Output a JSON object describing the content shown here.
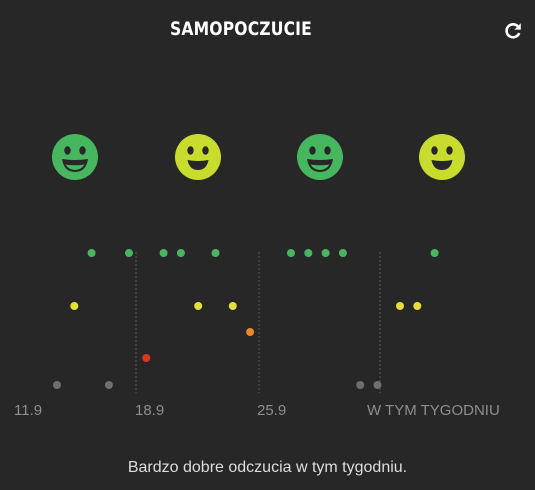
{
  "header": {
    "title": "SAMOPOCZUCIE",
    "refresh_icon": "refresh-icon"
  },
  "colors": {
    "background": "#272727",
    "very_good": "#47b75f",
    "good": "#c8dc2d",
    "ok": "#e8de3a",
    "medium": "#e8892b",
    "bad": "#d8381e",
    "none": "#6f6f6f"
  },
  "weeks": [
    {
      "label": "11.9",
      "mood": "very_good",
      "mood_icon": "very-happy-face-icon"
    },
    {
      "label": "18.9",
      "mood": "good",
      "mood_icon": "happy-face-icon"
    },
    {
      "label": "25.9",
      "mood": "very_good",
      "mood_icon": "very-happy-face-icon"
    },
    {
      "label": "W TYM TYGODNIU",
      "mood": "good",
      "mood_icon": "happy-face-icon"
    }
  ],
  "chart_data": {
    "type": "scatter",
    "levels": [
      "none",
      "bad",
      "medium",
      "ok",
      "good",
      "very_good"
    ],
    "days": [
      {
        "week": 0,
        "day": 0,
        "level": "none"
      },
      {
        "week": 0,
        "day": 1,
        "level": "ok"
      },
      {
        "week": 0,
        "day": 2,
        "level": "very_good"
      },
      {
        "week": 0,
        "day": 3,
        "level": "none"
      },
      {
        "week": 1,
        "day": 0,
        "level": "very_good"
      },
      {
        "week": 1,
        "day": 1,
        "level": "bad"
      },
      {
        "week": 1,
        "day": 2,
        "level": "very_good"
      },
      {
        "week": 1,
        "day": 3,
        "level": "very_good"
      },
      {
        "week": 1,
        "day": 4,
        "level": "ok"
      },
      {
        "week": 1,
        "day": 5,
        "level": "very_good"
      },
      {
        "week": 1,
        "day": 6,
        "level": "ok"
      },
      {
        "week": 1,
        "day": 7,
        "level": "medium"
      },
      {
        "week": 2,
        "day": 0,
        "level": "very_good"
      },
      {
        "week": 2,
        "day": 1,
        "level": "very_good"
      },
      {
        "week": 2,
        "day": 2,
        "level": "very_good"
      },
      {
        "week": 2,
        "day": 3,
        "level": "very_good"
      },
      {
        "week": 2,
        "day": 4,
        "level": "none"
      },
      {
        "week": 2,
        "day": 5,
        "level": "none"
      },
      {
        "week": 3,
        "day": 0,
        "level": "ok"
      },
      {
        "week": 3,
        "day": 1,
        "level": "ok"
      },
      {
        "week": 3,
        "day": 2,
        "level": "very_good"
      }
    ]
  },
  "summary": "Bardzo dobre odczucia w tym tygodniu."
}
